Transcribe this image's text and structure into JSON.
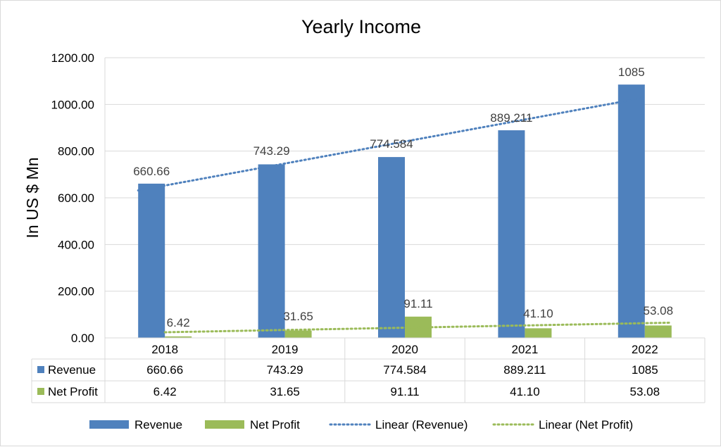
{
  "chart_data": {
    "type": "bar",
    "title": "Yearly Income",
    "ylabel": "In US $ Mn",
    "xlabel": "",
    "ylim": [
      0,
      1200
    ],
    "yticks": [
      "0.00",
      "200.00",
      "400.00",
      "600.00",
      "800.00",
      "1000.00",
      "1200.00"
    ],
    "grid": true,
    "categories": [
      "2018",
      "2019",
      "2020",
      "2021",
      "2022"
    ],
    "series": [
      {
        "name": "Revenue",
        "color": "#4f81bd",
        "values": [
          660.66,
          743.29,
          774.584,
          889.211,
          1085
        ],
        "labels": [
          "660.66",
          "743.29",
          "774.584",
          "889.211",
          "1085"
        ]
      },
      {
        "name": "Net Profit",
        "color": "#9bbb59",
        "values": [
          6.42,
          31.65,
          91.11,
          41.1,
          53.08
        ],
        "labels": [
          "6.42",
          "31.65",
          "91.11",
          "41.10",
          "53.08"
        ]
      }
    ],
    "trendlines": [
      {
        "name": "Linear (Revenue)",
        "series": "Revenue",
        "color": "#4f81bd",
        "style": "dotted"
      },
      {
        "name": "Linear (Net Profit)",
        "series": "Net Profit",
        "color": "#9bbb59",
        "style": "dotted"
      }
    ],
    "data_table": true,
    "legend_position": "bottom"
  }
}
